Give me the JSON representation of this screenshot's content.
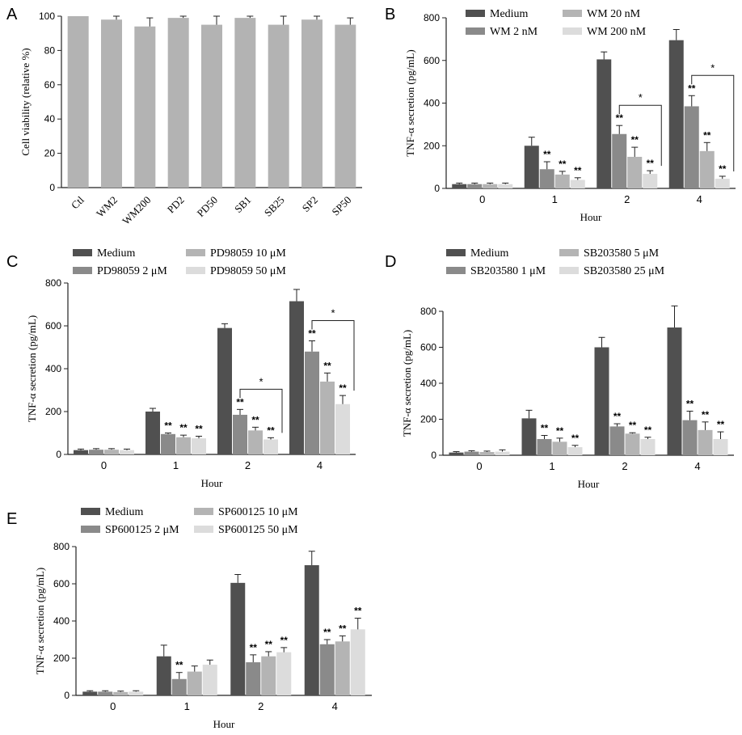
{
  "colors": {
    "medium": "#505050",
    "low": "#8a8a8a",
    "mid": "#b4b4b4",
    "high": "#dcdcdc",
    "viability": "#b3b3b3",
    "axis": "#222222"
  },
  "chart_data": [
    {
      "panel": "A",
      "type": "bar",
      "categories": [
        "Ctl",
        "WM2",
        "WM200",
        "PD2",
        "PD50",
        "SB1",
        "SB25",
        "SP2",
        "SP50"
      ],
      "values": [
        100,
        98,
        94,
        99,
        95,
        99,
        95,
        98,
        95
      ],
      "errors": [
        0,
        2,
        5,
        1,
        5,
        1,
        5,
        2,
        4
      ],
      "ylabel": "Cell viability (relative %)",
      "xlabel": "",
      "ylim": [
        0,
        100
      ],
      "yticks": [
        0,
        20,
        40,
        60,
        80,
        100
      ]
    },
    {
      "panel": "B",
      "type": "bar",
      "categories": [
        "0",
        "1",
        "2",
        "4"
      ],
      "xlabel": "Hour",
      "ylabel": "TNF-α secretion (pg/mL)",
      "ylim": [
        0,
        800
      ],
      "yticks": [
        0,
        200,
        400,
        600,
        800
      ],
      "legend": "top",
      "series": [
        {
          "name": "Medium",
          "values": [
            20,
            200,
            605,
            695
          ],
          "errors": [
            5,
            40,
            35,
            50
          ],
          "sig": [
            "",
            "",
            "",
            ""
          ]
        },
        {
          "name": "WM 2 nM",
          "values": [
            20,
            90,
            255,
            385
          ],
          "errors": [
            5,
            35,
            40,
            50
          ],
          "sig": [
            "",
            "**",
            "**",
            "**"
          ]
        },
        {
          "name": "WM 20 nM",
          "values": [
            20,
            65,
            148,
            175
          ],
          "errors": [
            5,
            15,
            45,
            40
          ],
          "sig": [
            "",
            "**",
            "**",
            "**"
          ]
        },
        {
          "name": "WM 200 nM",
          "values": [
            20,
            40,
            68,
            45
          ],
          "errors": [
            5,
            10,
            15,
            12
          ],
          "sig": [
            "",
            "**",
            "**",
            "**"
          ]
        }
      ],
      "brackets": [
        {
          "group": "2",
          "from": 1,
          "to": 3,
          "label": "*"
        },
        {
          "group": "4",
          "from": 1,
          "to": 3,
          "label": "*"
        }
      ]
    },
    {
      "panel": "C",
      "type": "bar",
      "categories": [
        "0",
        "1",
        "2",
        "4"
      ],
      "xlabel": "Hour",
      "ylabel": "TNF-α secretion (pg/mL)",
      "ylim": [
        0,
        800
      ],
      "yticks": [
        0,
        200,
        400,
        600,
        800
      ],
      "legend": "top",
      "series": [
        {
          "name": "Medium",
          "values": [
            20,
            200,
            590,
            715
          ],
          "errors": [
            5,
            15,
            20,
            55
          ],
          "sig": [
            "",
            "",
            "",
            ""
          ]
        },
        {
          "name": "PD98059 2 μM",
          "values": [
            22,
            95,
            185,
            480
          ],
          "errors": [
            5,
            5,
            25,
            50
          ],
          "sig": [
            "",
            "**",
            "**",
            "**"
          ]
        },
        {
          "name": "PD98059 10 μM",
          "values": [
            22,
            80,
            112,
            340
          ],
          "errors": [
            5,
            10,
            15,
            40
          ],
          "sig": [
            "",
            "**",
            "**",
            "**"
          ]
        },
        {
          "name": "PD98059 50 μM",
          "values": [
            20,
            75,
            70,
            235
          ],
          "errors": [
            5,
            10,
            8,
            40
          ],
          "sig": [
            "",
            "**",
            "**",
            "**"
          ]
        }
      ],
      "brackets": [
        {
          "group": "2",
          "from": 1,
          "to": 3,
          "label": "*"
        },
        {
          "group": "4",
          "from": 1,
          "to": 3,
          "label": "*"
        }
      ]
    },
    {
      "panel": "D",
      "type": "bar",
      "categories": [
        "0",
        "1",
        "2",
        "4"
      ],
      "xlabel": "Hour",
      "ylabel": "TNF-α secretion (pg/mL)",
      "ylim": [
        0,
        800
      ],
      "yticks": [
        0,
        200,
        400,
        600,
        800
      ],
      "legend": "top",
      "series": [
        {
          "name": "Medium",
          "values": [
            15,
            205,
            600,
            710
          ],
          "errors": [
            5,
            45,
            55,
            120
          ],
          "sig": [
            "",
            "",
            "",
            ""
          ]
        },
        {
          "name": "SB203580 1 μM",
          "values": [
            20,
            90,
            160,
            195
          ],
          "errors": [
            5,
            20,
            15,
            50
          ],
          "sig": [
            "",
            "**",
            "**",
            "**"
          ]
        },
        {
          "name": "SB203580 5 μM",
          "values": [
            18,
            75,
            120,
            140
          ],
          "errors": [
            5,
            20,
            5,
            45
          ],
          "sig": [
            "",
            "**",
            "**",
            "**"
          ]
        },
        {
          "name": "SB203580 25 μM",
          "values": [
            20,
            45,
            90,
            90
          ],
          "errors": [
            10,
            10,
            10,
            40
          ],
          "sig": [
            "",
            "**",
            "**",
            "**"
          ]
        }
      ],
      "brackets": []
    },
    {
      "panel": "E",
      "type": "bar",
      "categories": [
        "0",
        "1",
        "2",
        "4"
      ],
      "xlabel": "Hour",
      "ylabel": "TNF-α secretion (pg/mL)",
      "ylim": [
        0,
        800
      ],
      "yticks": [
        0,
        200,
        400,
        600,
        800
      ],
      "legend": "top",
      "series": [
        {
          "name": "Medium",
          "values": [
            20,
            210,
            605,
            700
          ],
          "errors": [
            5,
            60,
            45,
            75
          ],
          "sig": [
            "",
            "",
            "",
            ""
          ]
        },
        {
          "name": "SP600125 2 μM",
          "values": [
            20,
            88,
            178,
            275
          ],
          "errors": [
            5,
            35,
            40,
            25
          ],
          "sig": [
            "",
            "**",
            "**",
            "**"
          ]
        },
        {
          "name": "SP600125 10 μM",
          "values": [
            18,
            128,
            210,
            290
          ],
          "errors": [
            5,
            30,
            25,
            30
          ],
          "sig": [
            "",
            "",
            "**",
            "**"
          ]
        },
        {
          "name": "SP600125 50 μM",
          "values": [
            20,
            165,
            232,
            355
          ],
          "errors": [
            5,
            25,
            25,
            60
          ],
          "sig": [
            "",
            "",
            "**",
            "**"
          ]
        }
      ],
      "brackets": []
    }
  ]
}
